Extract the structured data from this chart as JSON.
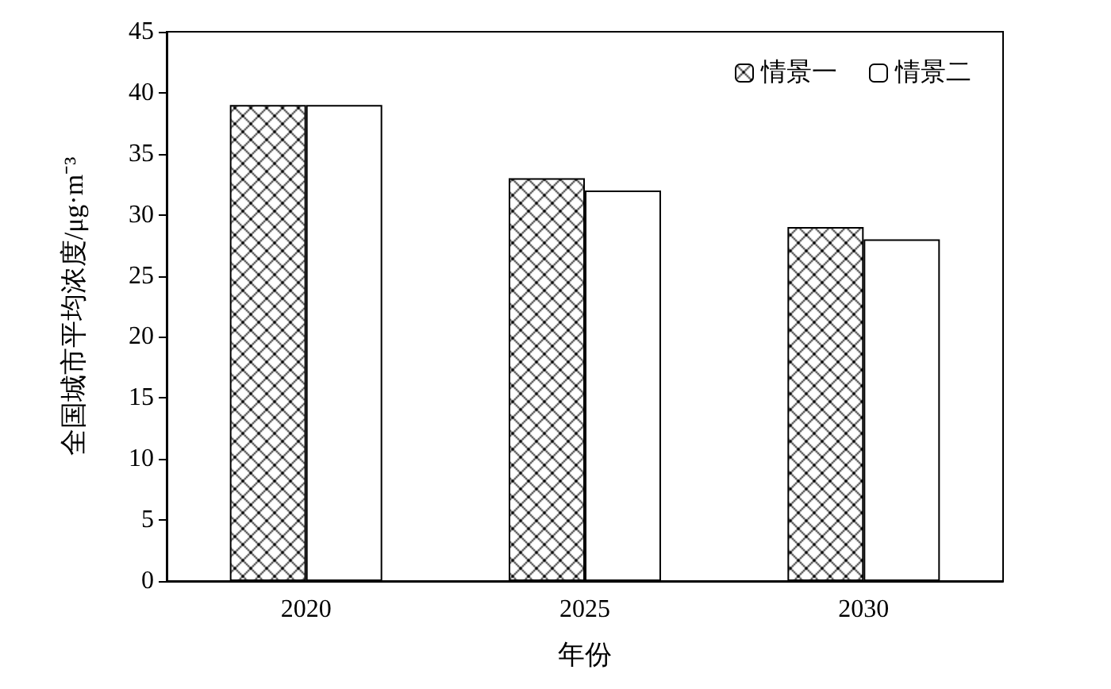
{
  "chart_data": {
    "type": "bar",
    "xlabel": "年份",
    "ylabel": "全国城市平均浓度/μg·m⁻³",
    "categories": [
      "2020",
      "2025",
      "2030"
    ],
    "series": [
      {
        "name": "情景一",
        "color": "#000000",
        "values": [
          39,
          33,
          29
        ]
      },
      {
        "name": "情景二",
        "color": "#ffffff",
        "values": [
          39,
          32,
          28
        ]
      }
    ],
    "ylim": [
      0,
      45
    ],
    "yticks": [
      0,
      5,
      10,
      15,
      20,
      25,
      30,
      35,
      40,
      45
    ],
    "grid": false,
    "legend": "top right"
  }
}
